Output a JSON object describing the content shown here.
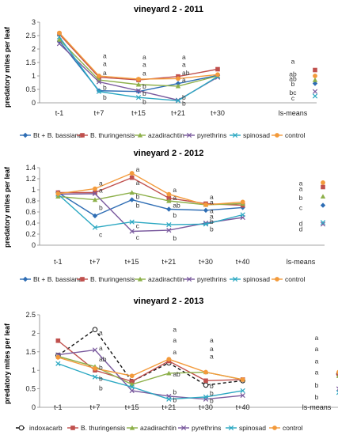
{
  "chart_data": [
    {
      "type": "line",
      "title": "vineyard 2 - 2011",
      "ylabel": "predatory mites per leaf",
      "xlabel": "",
      "categories": [
        "t-1",
        "t+7",
        "t+15",
        "t+21",
        "t+30"
      ],
      "ls_label": "ls-means",
      "ylim": [
        0,
        3
      ],
      "yticks": [
        0,
        0.5,
        1,
        1.5,
        2,
        2.5,
        3
      ],
      "ytick_labels": [
        "0",
        "0.5",
        "1",
        "1.5",
        "2",
        "2.5",
        "3"
      ],
      "grid": false,
      "legend_position": "bottom",
      "series": [
        {
          "name": "Bt + B. bassiana",
          "color": "#2e6db4",
          "marker": "diamond",
          "dash": "solid",
          "values": [
            2.3,
            0.45,
            0.42,
            0.72,
            1.02
          ],
          "ls_mean": 0.72
        },
        {
          "name": "B. thuringensis",
          "color": "#c0504d",
          "marker": "square",
          "dash": "solid",
          "values": [
            2.55,
            0.95,
            0.85,
            0.98,
            1.25
          ],
          "ls_mean": 1.22
        },
        {
          "name": "azadirachtin",
          "color": "#8db04a",
          "marker": "triangle",
          "dash": "solid",
          "values": [
            2.35,
            0.85,
            0.68,
            0.62,
            1.0
          ],
          "ls_mean": 0.85
        },
        {
          "name": "pyrethrins",
          "color": "#7a5a9e",
          "marker": "x",
          "dash": "solid",
          "values": [
            2.2,
            0.78,
            0.45,
            0.1,
            0.95
          ],
          "ls_mean": 0.42
        },
        {
          "name": "spinosad",
          "color": "#2ba8c2",
          "marker": "x",
          "dash": "solid",
          "values": [
            2.45,
            0.42,
            0.2,
            0.08,
            0.98
          ],
          "ls_mean": 0.25
        },
        {
          "name": "control",
          "color": "#f39a3b",
          "marker": "circle",
          "dash": "solid",
          "values": [
            2.6,
            1.0,
            0.88,
            0.9,
            1.05
          ],
          "ls_mean": 1.0
        }
      ],
      "annotations": [
        {
          "x": "t+7",
          "y": 1.75,
          "text": "a"
        },
        {
          "x": "t+7",
          "y": 1.45,
          "text": "a"
        },
        {
          "x": "t+7",
          "y": 1.12,
          "text": "a"
        },
        {
          "x": "t+7",
          "y": 0.58,
          "text": "b"
        },
        {
          "x": "t+7",
          "y": 0.2,
          "text": "b"
        },
        {
          "x": "t+15",
          "y": 1.7,
          "text": "a"
        },
        {
          "x": "t+15",
          "y": 1.42,
          "text": "a"
        },
        {
          "x": "t+15",
          "y": 1.1,
          "text": "a"
        },
        {
          "x": "t+15",
          "y": 0.62,
          "text": "b"
        },
        {
          "x": "t+15",
          "y": 0.35,
          "text": "b"
        },
        {
          "x": "t+15",
          "y": 0.05,
          "text": "b"
        },
        {
          "x": "t+21",
          "y": 1.7,
          "text": "a"
        },
        {
          "x": "t+21",
          "y": 1.42,
          "text": "a"
        },
        {
          "x": "t+21",
          "y": 1.12,
          "text": "ab"
        },
        {
          "x": "t+21",
          "y": 0.85,
          "text": "a"
        },
        {
          "x": "t+21",
          "y": 0.2,
          "text": "b"
        },
        {
          "x": "t+21",
          "y": -0.02,
          "text": "b"
        }
      ],
      "ls_annotations": [
        {
          "y": 1.55,
          "text": "a"
        },
        {
          "y": 1.08,
          "text": "ab"
        },
        {
          "y": 0.9,
          "text": "ab"
        },
        {
          "y": 0.7,
          "text": "b"
        },
        {
          "y": 0.38,
          "text": "bc"
        },
        {
          "y": 0.17,
          "text": "c"
        }
      ]
    },
    {
      "type": "line",
      "title": "vineyard 2 - 2012",
      "ylabel": "predatory mites per leaf",
      "xlabel": "",
      "categories": [
        "t-1",
        "t+7",
        "t+15",
        "t+21",
        "t+30",
        "t+40"
      ],
      "ls_label": "ls-means",
      "ylim": [
        0,
        1.4
      ],
      "yticks": [
        0,
        0.2,
        0.4,
        0.6,
        0.8,
        1,
        1.2,
        1.4
      ],
      "ytick_labels": [
        "0",
        "0.2",
        "0.4",
        "0.6",
        "0.8",
        "1",
        "1.2",
        "1.4"
      ],
      "grid": false,
      "legend_position": "bottom",
      "series": [
        {
          "name": "Bt + B. bassiana",
          "color": "#2e6db4",
          "marker": "diamond",
          "dash": "solid",
          "values": [
            0.95,
            0.53,
            0.82,
            0.65,
            0.63,
            0.68
          ],
          "ls_mean": 0.72
        },
        {
          "name": "B. thuringensis",
          "color": "#c0504d",
          "marker": "square",
          "dash": "solid",
          "values": [
            0.95,
            0.95,
            1.22,
            0.85,
            0.75,
            0.72
          ],
          "ls_mean": 1.05
        },
        {
          "name": "azadirachtin",
          "color": "#8db04a",
          "marker": "triangle",
          "dash": "solid",
          "values": [
            0.88,
            0.82,
            0.95,
            0.8,
            0.73,
            0.75
          ],
          "ls_mean": 0.88
        },
        {
          "name": "pyrethrins",
          "color": "#7a5a9e",
          "marker": "x",
          "dash": "solid",
          "values": [
            0.92,
            0.93,
            0.25,
            0.27,
            0.4,
            0.5
          ],
          "ls_mean": 0.38
        },
        {
          "name": "spinosad",
          "color": "#2ba8c2",
          "marker": "x",
          "dash": "solid",
          "values": [
            0.92,
            0.32,
            0.42,
            0.37,
            0.38,
            0.55
          ],
          "ls_mean": 0.41
        },
        {
          "name": "control",
          "color": "#f39a3b",
          "marker": "circle",
          "dash": "solid",
          "values": [
            0.93,
            1.02,
            1.3,
            0.92,
            0.73,
            0.78
          ],
          "ls_mean": 1.13
        }
      ],
      "annotations": [
        {
          "x": "t+7",
          "y": 1.12,
          "text": "a"
        },
        {
          "x": "t+7",
          "y": 0.99,
          "text": "a"
        },
        {
          "x": "t+7",
          "y": 0.68,
          "text": "b"
        },
        {
          "x": "t+7",
          "y": 0.19,
          "text": "c"
        },
        {
          "x": "t+15",
          "y": 1.37,
          "text": "a"
        },
        {
          "x": "t+15",
          "y": 1.13,
          "text": "a"
        },
        {
          "x": "t+15",
          "y": 0.88,
          "text": "b"
        },
        {
          "x": "t+15",
          "y": 0.72,
          "text": "b"
        },
        {
          "x": "t+15",
          "y": 0.35,
          "text": "c"
        },
        {
          "x": "t+15",
          "y": 0.14,
          "text": "c"
        },
        {
          "x": "t+21",
          "y": 1.0,
          "text": "a"
        },
        {
          "x": "t+21",
          "y": 0.86,
          "text": "a"
        },
        {
          "x": "t+21",
          "y": 0.72,
          "text": "ab"
        },
        {
          "x": "t+21",
          "y": 0.54,
          "text": "b"
        },
        {
          "x": "t+21",
          "y": 0.13,
          "text": "b"
        },
        {
          "x": "t+30",
          "y": 0.87,
          "text": "a"
        },
        {
          "x": "t+30",
          "y": 0.78,
          "text": "a"
        },
        {
          "x": "t+30",
          "y": 0.62,
          "text": "a"
        },
        {
          "x": "t+30",
          "y": 0.52,
          "text": "a"
        },
        {
          "x": "t+30",
          "y": 0.43,
          "text": "b"
        },
        {
          "x": "t+30",
          "y": 0.29,
          "text": "b"
        }
      ],
      "ls_annotations": [
        {
          "y": 1.12,
          "text": "a"
        },
        {
          "y": 1.02,
          "text": "a"
        },
        {
          "y": 0.86,
          "text": "b"
        },
        {
          "y": 0.68,
          "text": "c"
        },
        {
          "y": 0.39,
          "text": "d"
        },
        {
          "y": 0.29,
          "text": "d"
        }
      ]
    },
    {
      "type": "line",
      "title": "vineyard 2 - 2013",
      "ylabel": "predatory mites per leaf",
      "xlabel": "",
      "categories": [
        "t-1",
        "t+7",
        "t+15",
        "t+21",
        "t+30",
        "t+40"
      ],
      "ls_label": "ls-means",
      "ylim": [
        0,
        2.5
      ],
      "yticks": [
        0,
        0.5,
        1,
        1.5,
        2,
        2.5
      ],
      "ytick_labels": [
        "0",
        "0.5",
        "1",
        "1.5",
        "2",
        "2.5"
      ],
      "grid": false,
      "legend_position": "bottom",
      "series": [
        {
          "name": "indoxacarb",
          "color": "#111111",
          "marker": "circle-open",
          "dash": "dashed",
          "values": [
            1.4,
            2.1,
            0.7,
            1.2,
            0.6,
            0.72
          ],
          "ls_mean": 0.9
        },
        {
          "name": "B. thuringensis",
          "color": "#c0504d",
          "marker": "square",
          "dash": "solid",
          "values": [
            1.8,
            1.0,
            0.7,
            1.25,
            0.72,
            0.75
          ],
          "ls_mean": 0.9
        },
        {
          "name": "azadirachtin",
          "color": "#8db04a",
          "marker": "triangle",
          "dash": "solid",
          "values": [
            1.38,
            1.1,
            0.62,
            0.92,
            0.95,
            0.75
          ],
          "ls_mean": 0.85
        },
        {
          "name": "pyrethrins",
          "color": "#7a5a9e",
          "marker": "x",
          "dash": "solid",
          "values": [
            1.42,
            1.55,
            0.45,
            0.3,
            0.22,
            0.32
          ],
          "ls_mean": 0.5
        },
        {
          "name": "spinosad",
          "color": "#2ba8c2",
          "marker": "x",
          "dash": "solid",
          "values": [
            1.18,
            0.82,
            0.55,
            0.22,
            0.28,
            0.45
          ],
          "ls_mean": 0.4
        },
        {
          "name": "control",
          "color": "#f39a3b",
          "marker": "circle",
          "dash": "solid",
          "values": [
            1.35,
            1.05,
            0.85,
            1.3,
            0.95,
            0.75
          ],
          "ls_mean": 0.95
        }
      ],
      "annotations": [
        {
          "x": "t+7",
          "y": 2.02,
          "text": "a"
        },
        {
          "x": "t+7",
          "y": 1.6,
          "text": "a"
        },
        {
          "x": "t+7",
          "y": 1.3,
          "text": "ab"
        },
        {
          "x": "t+7",
          "y": 1.08,
          "text": "b"
        },
        {
          "x": "t+7",
          "y": 0.78,
          "text": "b"
        },
        {
          "x": "t+7",
          "y": 0.52,
          "text": "b"
        },
        {
          "x": "t+21",
          "y": 2.1,
          "text": "a"
        },
        {
          "x": "t+21",
          "y": 1.82,
          "text": "a"
        },
        {
          "x": "t+21",
          "y": 1.5,
          "text": "a"
        },
        {
          "x": "t+21",
          "y": 0.9,
          "text": "ab"
        },
        {
          "x": "t+21",
          "y": 0.42,
          "text": "b"
        },
        {
          "x": "t+21",
          "y": 0.2,
          "text": "b"
        },
        {
          "x": "t+30",
          "y": 1.82,
          "text": "a"
        },
        {
          "x": "t+30",
          "y": 1.58,
          "text": "a"
        },
        {
          "x": "t+30",
          "y": 1.38,
          "text": "a"
        },
        {
          "x": "t+30",
          "y": 0.58,
          "text": "b"
        },
        {
          "x": "t+30",
          "y": 0.38,
          "text": "b"
        },
        {
          "x": "t+30",
          "y": 0.18,
          "text": "b"
        }
      ],
      "ls_annotations": [
        {
          "y": 1.88,
          "text": "a"
        },
        {
          "y": 1.58,
          "text": "a"
        },
        {
          "y": 1.25,
          "text": "a"
        },
        {
          "y": 0.95,
          "text": "a"
        },
        {
          "y": 0.6,
          "text": "b"
        },
        {
          "y": 0.28,
          "text": "b"
        }
      ]
    }
  ]
}
